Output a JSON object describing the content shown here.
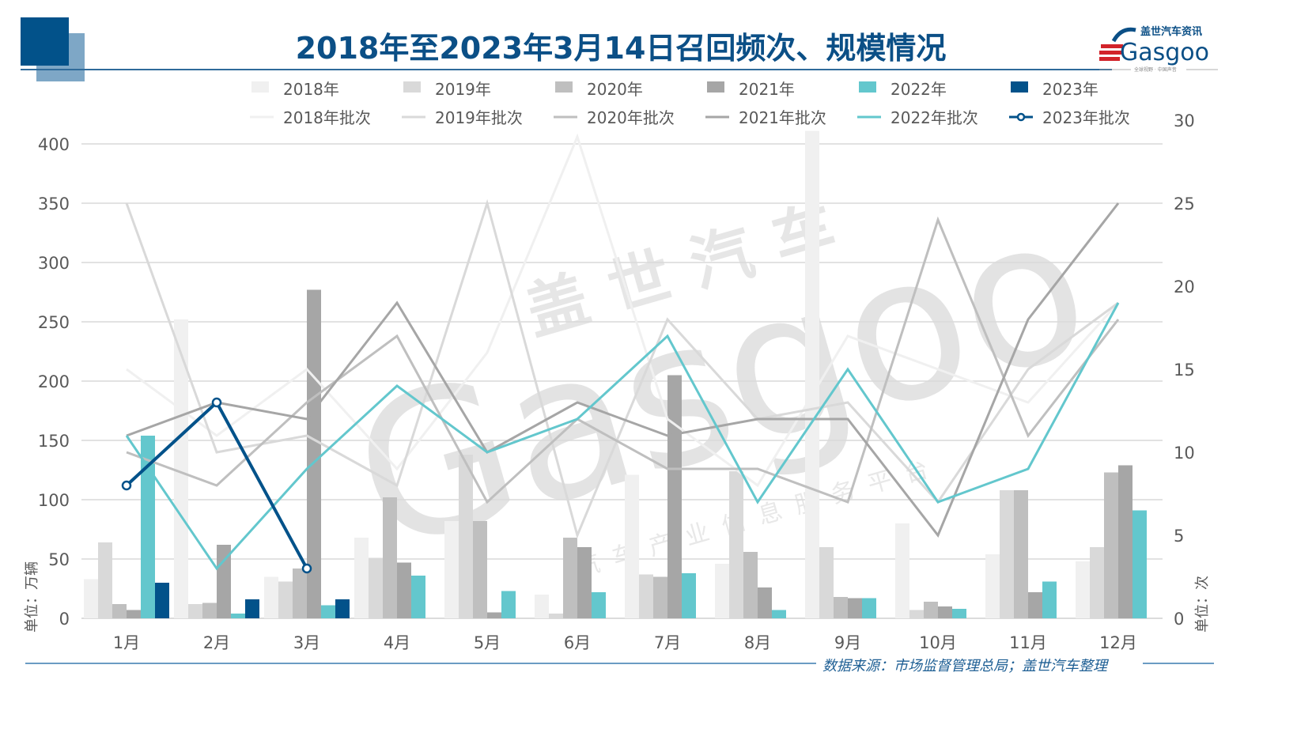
{
  "title": "2018年至2023年3月14日召回频次、规模情况",
  "logo": {
    "brand": "Gasgoo",
    "cn": "盖世汽车资讯",
    "tagline": "全球视野 · 中国声音"
  },
  "source": "数据来源：市场监督管理总局；盖世汽车整理",
  "watermark": {
    "main": "Gasgoo",
    "cn": "盖世汽车",
    "sub": "汽车产业信息服务平台"
  },
  "colors": {
    "2018": "#f0f0f0",
    "2019": "#d9d9d9",
    "2020": "#bfbfbf",
    "2021": "#a6a6a6",
    "2022": "#63c7cd",
    "2023": "#02528a",
    "title": "#0b4f86",
    "grid": "#d9d9d9"
  },
  "legend": {
    "bars": [
      "2018年",
      "2019年",
      "2020年",
      "2021年",
      "2022年",
      "2023年"
    ],
    "lines": [
      "2018年批次",
      "2019年批次",
      "2020年批次",
      "2021年批次",
      "2022年批次",
      "2023年批次"
    ]
  },
  "chart_data": {
    "type": "bar+line",
    "title": "2018年至2023年3月14日召回频次、规模情况",
    "categories": [
      "1月",
      "2月",
      "3月",
      "4月",
      "5月",
      "6月",
      "7月",
      "8月",
      "9月",
      "10月",
      "11月",
      "12月"
    ],
    "ylabel": "单位：万辆",
    "y2label": "单位：次",
    "ylim": [
      0,
      400
    ],
    "y2lim": [
      0,
      30
    ],
    "yticks": [
      0,
      50,
      100,
      150,
      200,
      250,
      300,
      350,
      400
    ],
    "y2ticks": [
      0,
      5,
      10,
      15,
      20,
      25,
      30
    ],
    "grid": true,
    "legend_position": "top",
    "bar_series": [
      {
        "name": "2018年",
        "values": [
          33,
          252,
          35,
          68,
          82,
          20,
          121,
          46,
          411,
          80,
          54,
          48
        ]
      },
      {
        "name": "2019年",
        "values": [
          64,
          12,
          31,
          51,
          138,
          4,
          37,
          124,
          60,
          7,
          108,
          60
        ]
      },
      {
        "name": "2020年",
        "values": [
          12,
          13,
          42,
          102,
          82,
          68,
          35,
          56,
          18,
          14,
          108,
          123
        ]
      },
      {
        "name": "2021年",
        "values": [
          7,
          62,
          277,
          47,
          5,
          60,
          205,
          26,
          17,
          10,
          22,
          129
        ]
      },
      {
        "name": "2022年",
        "values": [
          154,
          4,
          11,
          36,
          23,
          22,
          38,
          7,
          17,
          8,
          31,
          91
        ]
      },
      {
        "name": "2023年",
        "values": [
          30,
          16,
          16,
          null,
          null,
          null,
          null,
          null,
          null,
          null,
          null,
          null
        ]
      }
    ],
    "line_series": [
      {
        "name": "2018年批次",
        "values": [
          15,
          11,
          15,
          9,
          16,
          29,
          12,
          8,
          17,
          15,
          13,
          19
        ]
      },
      {
        "name": "2019年批次",
        "values": [
          25,
          10,
          11,
          8,
          25,
          5,
          18,
          12,
          13,
          7,
          15,
          19
        ]
      },
      {
        "name": "2020年批次",
        "values": [
          10,
          8,
          13,
          17,
          7,
          12,
          9,
          9,
          7,
          24,
          11,
          18
        ]
      },
      {
        "name": "2021年批次",
        "values": [
          11,
          13,
          12,
          19,
          10,
          13,
          11,
          12,
          12,
          5,
          18,
          25
        ]
      },
      {
        "name": "2022年批次",
        "values": [
          11,
          3,
          9,
          14,
          10,
          12,
          17,
          7,
          15,
          7,
          9,
          19
        ]
      },
      {
        "name": "2023年批次",
        "values": [
          8,
          13,
          3,
          null,
          null,
          null,
          null,
          null,
          null,
          null,
          null,
          null
        ]
      }
    ]
  }
}
